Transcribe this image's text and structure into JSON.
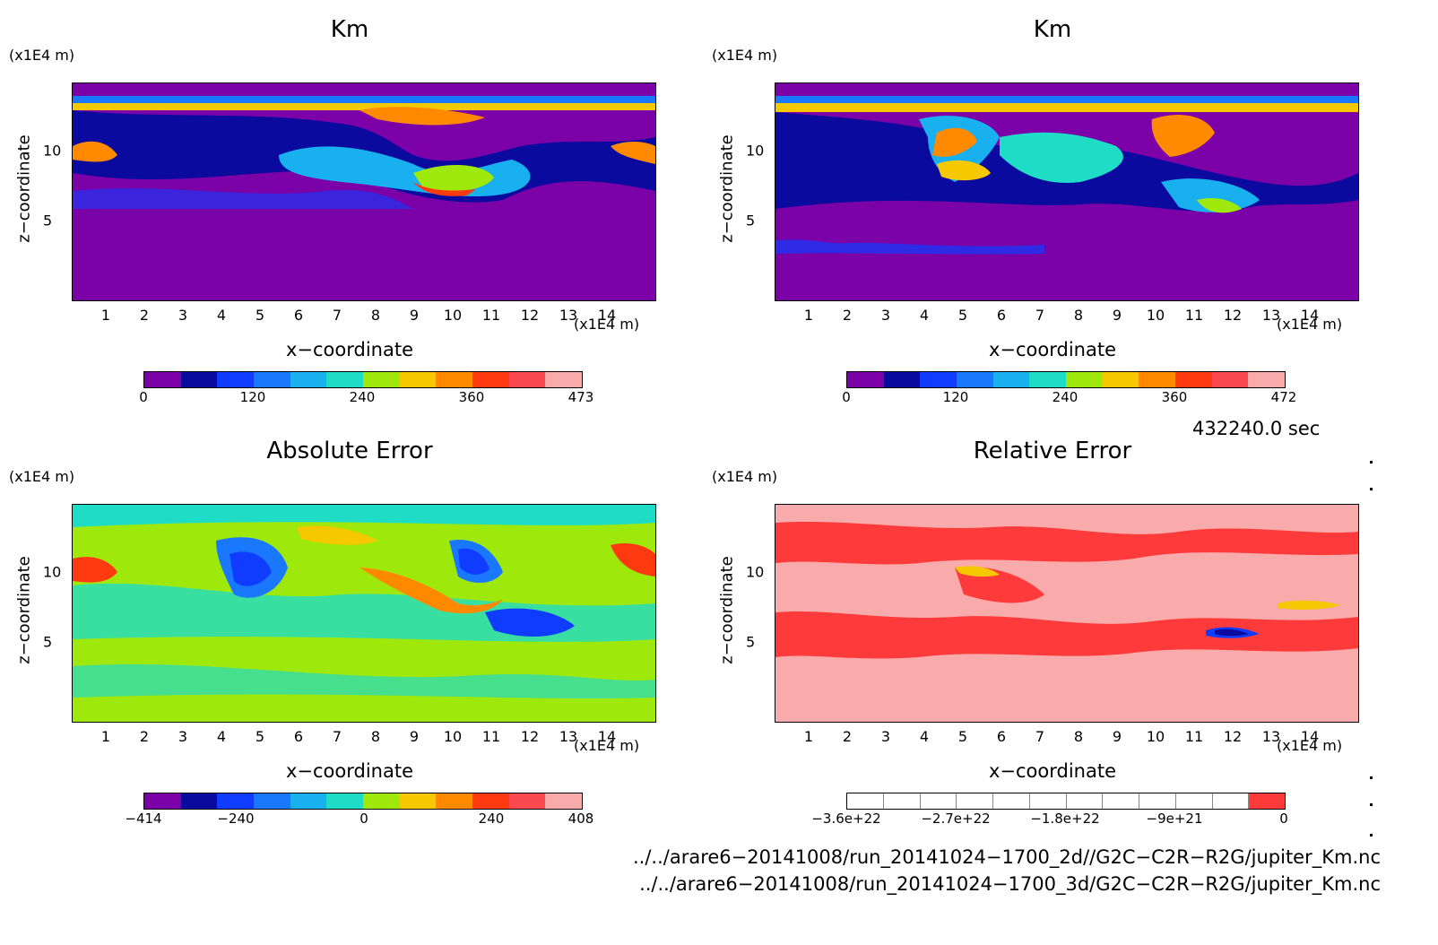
{
  "panels": [
    {
      "title": "Km",
      "unit_z": "(x1E4 m)",
      "unit_x": "(x1E4 m)",
      "xlabel": "x−coordinate",
      "ylabel": "z−coordinate",
      "colorbar": {
        "colors": [
          "#7b00a8",
          "#0a0a9e",
          "#0f3cff",
          "#1a78ff",
          "#19b0ef",
          "#1fdcc6",
          "#9fe80b",
          "#f6c800",
          "#ff8a00",
          "#ff3a10",
          "#fa4a50",
          "#f9aaaa"
        ],
        "labels": [
          "0",
          "120",
          "240",
          "360",
          "473"
        ]
      }
    },
    {
      "title": "Km",
      "unit_z": "(x1E4 m)",
      "unit_x": "(x1E4 m)",
      "xlabel": "x−coordinate",
      "ylabel": "z−coordinate",
      "colorbar": {
        "colors": [
          "#7b00a8",
          "#0a0a9e",
          "#0f3cff",
          "#1a78ff",
          "#19b0ef",
          "#1fdcc6",
          "#9fe80b",
          "#f6c800",
          "#ff8a00",
          "#ff3a10",
          "#fa4a50",
          "#f9aaaa"
        ],
        "labels": [
          "0",
          "120",
          "240",
          "360",
          "472"
        ]
      }
    },
    {
      "title": "Absolute Error",
      "unit_z": "(x1E4 m)",
      "unit_x": "(x1E4 m)",
      "xlabel": "x−coordinate",
      "ylabel": "z−coordinate",
      "colorbar": {
        "colors": [
          "#7b00a8",
          "#0a0a9e",
          "#0f3cff",
          "#1a78ff",
          "#19b0ef",
          "#1fdcc6",
          "#9fe80b",
          "#f6c800",
          "#ff8a00",
          "#ff3a10",
          "#fa4a50",
          "#f9aaaa"
        ],
        "labels": [
          "−414",
          "−240",
          "0",
          "240",
          "408"
        ]
      }
    },
    {
      "title": "Relative Error",
      "unit_z": "(x1E4 m)",
      "unit_x": "(x1E4 m)",
      "xlabel": "x−coordinate",
      "ylabel": "z−coordinate",
      "colorbar": {
        "colors": [
          "#ffffff",
          "#ffffff",
          "#ffffff",
          "#ffffff",
          "#ffffff",
          "#ffffff",
          "#ffffff",
          "#ffffff",
          "#ffffff",
          "#ffffff",
          "#ffffff",
          "#ff3a3a"
        ],
        "labels": [
          "−3.6e+22",
          "−2.7e+22",
          "−1.8e+22",
          "−9e+21",
          "0"
        ]
      }
    }
  ],
  "x_ticks": [
    "1",
    "2",
    "3",
    "4",
    "5",
    "6",
    "7",
    "8",
    "9",
    "10",
    "11",
    "12",
    "13",
    "14"
  ],
  "z_ticks": [
    "10",
    "5"
  ],
  "time_label": "432240.0 sec",
  "paths": [
    "../../arare6−20141008/run_20141024−1700_2d//G2C−C2R−R2G/jupiter_Km.nc",
    "../../arare6−20141008/run_20141024−1700_3d/G2C−C2R−R2G/jupiter_Km.nc"
  ],
  "chart_data": [
    {
      "type": "heatmap",
      "title": "Km",
      "xlabel": "x−coordinate",
      "ylabel": "z−coordinate",
      "x_unit": "(x1E4 m)",
      "z_unit": "(x1E4 m)",
      "xlim": [
        0,
        15
      ],
      "zlim": [
        0,
        15
      ],
      "value_range": [
        0,
        473
      ],
      "colorbar_ticks": [
        0,
        120,
        240,
        360,
        473
      ]
    },
    {
      "type": "heatmap",
      "title": "Km",
      "xlabel": "x−coordinate",
      "ylabel": "z−coordinate",
      "x_unit": "(x1E4 m)",
      "z_unit": "(x1E4 m)",
      "xlim": [
        0,
        15
      ],
      "zlim": [
        0,
        15
      ],
      "value_range": [
        0,
        472
      ],
      "colorbar_ticks": [
        0,
        120,
        240,
        360,
        472
      ]
    },
    {
      "type": "heatmap",
      "title": "Absolute Error",
      "xlabel": "x−coordinate",
      "ylabel": "z−coordinate",
      "x_unit": "(x1E4 m)",
      "z_unit": "(x1E4 m)",
      "xlim": [
        0,
        15
      ],
      "zlim": [
        0,
        15
      ],
      "value_range": [
        -414,
        408
      ],
      "colorbar_ticks": [
        -414,
        -240,
        0,
        240,
        408
      ]
    },
    {
      "type": "heatmap",
      "title": "Relative Error",
      "xlabel": "x−coordinate",
      "ylabel": "z−coordinate",
      "x_unit": "(x1E4 m)",
      "z_unit": "(x1E4 m)",
      "xlim": [
        0,
        15
      ],
      "zlim": [
        0,
        15
      ],
      "value_range": [
        -3.6e+22,
        0
      ],
      "colorbar_ticks": [
        -3.6e+22,
        -2.7e+22,
        -1.8e+22,
        -9e+21,
        0
      ]
    }
  ]
}
